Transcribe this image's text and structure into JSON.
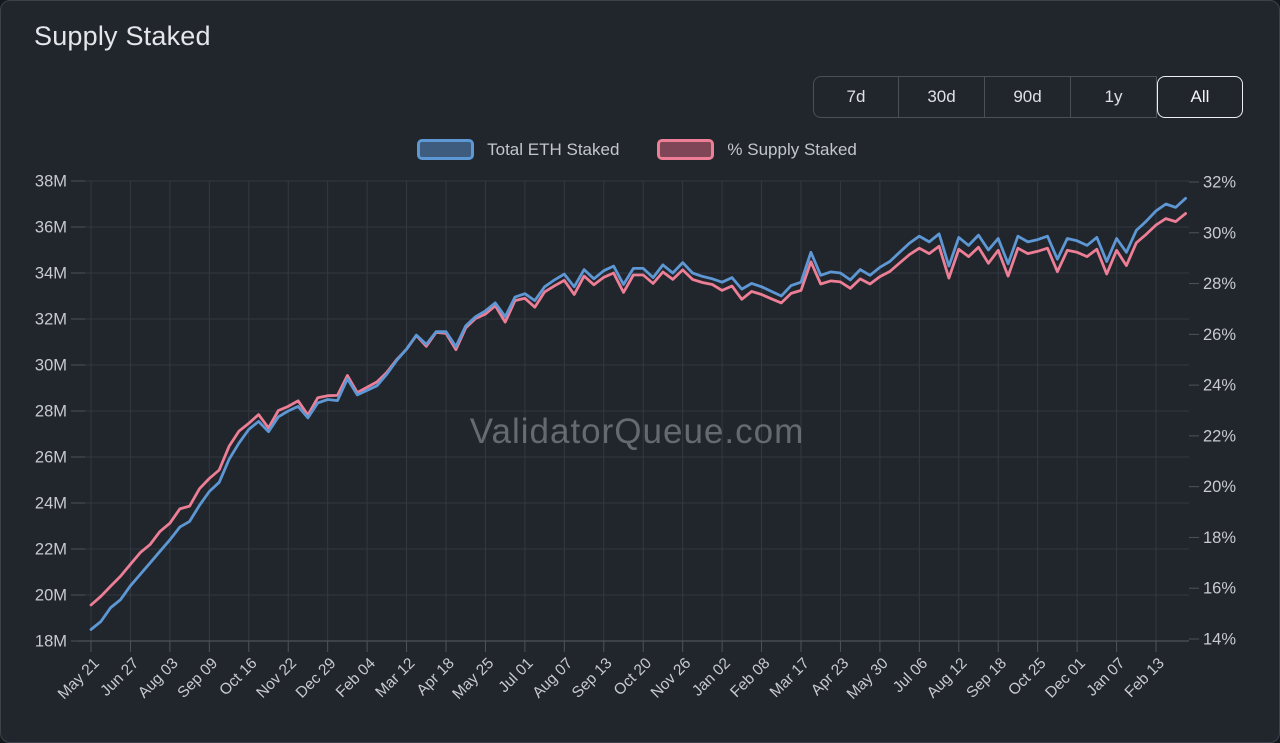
{
  "card": {
    "title": "Supply Staked"
  },
  "toolbar": {
    "ranges": [
      {
        "label": "7d",
        "active": false
      },
      {
        "label": "30d",
        "active": false
      },
      {
        "label": "90d",
        "active": false
      },
      {
        "label": "1y",
        "active": false
      },
      {
        "label": "All",
        "active": true
      }
    ]
  },
  "legend": {
    "items": [
      {
        "label": "Total ETH Staked",
        "color": "#5d97d4",
        "fill": "#3e5c7d"
      },
      {
        "label": "% Supply Staked",
        "color": "#ec7e95",
        "fill": "#7e4656"
      }
    ]
  },
  "watermark": "ValidatorQueue.com",
  "colors": {
    "background": "#21252c",
    "card_border": "#3c424b",
    "grid": "#333942",
    "axis": "#4d535c",
    "tick_text": "#c7cad0",
    "title_text": "#e4e6e9",
    "watermark_text": "rgba(158,163,171,0.55)",
    "blue": "#5d97d4",
    "pink": "#ec7e95"
  },
  "chart_data": {
    "type": "line",
    "title": "Supply Staked",
    "grid": true,
    "legend_position": "top",
    "x_tick_labels": [
      "May 21",
      "Jun 27",
      "Aug 03",
      "Sep 09",
      "Oct 16",
      "Nov 22",
      "Dec 29",
      "Feb 04",
      "Mar 12",
      "Apr 18",
      "May 25",
      "Jul 01",
      "Aug 07",
      "Sep 13",
      "Oct 20",
      "Nov 26",
      "Jan 02",
      "Feb 08",
      "Mar 17",
      "Apr 23",
      "May 30",
      "Jul 06",
      "Aug 12",
      "Sep 18",
      "Oct 25",
      "Dec 01",
      "Jan 07",
      "Feb 13"
    ],
    "y_left": {
      "name": "Total ETH Staked",
      "ticks": [
        "38M",
        "36M",
        "34M",
        "32M",
        "30M",
        "28M",
        "26M",
        "24M",
        "22M",
        "20M",
        "18M"
      ],
      "range": [
        18000000,
        38000000
      ]
    },
    "y_right": {
      "name": "% Supply Staked",
      "ticks": [
        "32%",
        "30%",
        "28%",
        "26%",
        "24%",
        "22%",
        "20%",
        "18%",
        "16%",
        "14%"
      ],
      "range": [
        14,
        32
      ]
    },
    "points_per_tick_interval": 4,
    "series": [
      {
        "name": "Total ETH Staked",
        "axis": "left",
        "unit": "M ETH",
        "color": "#5d97d4",
        "values": [
          18.5,
          18.85,
          19.45,
          19.8,
          20.4,
          20.9,
          21.4,
          21.9,
          22.4,
          22.95,
          23.2,
          23.9,
          24.5,
          24.9,
          25.9,
          26.6,
          27.2,
          27.55,
          27.1,
          27.75,
          28.0,
          28.2,
          27.7,
          28.35,
          28.5,
          28.45,
          29.4,
          28.7,
          28.9,
          29.1,
          29.6,
          30.2,
          30.7,
          31.3,
          30.9,
          31.45,
          31.45,
          30.8,
          31.7,
          32.1,
          32.35,
          32.7,
          32.1,
          32.95,
          33.1,
          32.8,
          33.4,
          33.7,
          33.95,
          33.4,
          34.15,
          33.75,
          34.1,
          34.3,
          33.5,
          34.2,
          34.2,
          33.8,
          34.35,
          34.0,
          34.45,
          34.0,
          33.85,
          33.75,
          33.6,
          33.8,
          33.3,
          33.55,
          33.4,
          33.2,
          33.0,
          33.45,
          33.6,
          34.9,
          33.9,
          34.05,
          34.0,
          33.7,
          34.15,
          33.9,
          34.25,
          34.5,
          34.9,
          35.3,
          35.6,
          35.35,
          35.7,
          34.3,
          35.55,
          35.2,
          35.65,
          35.0,
          35.5,
          34.4,
          35.6,
          35.35,
          35.45,
          35.6,
          34.6,
          35.5,
          35.4,
          35.2,
          35.55,
          34.5,
          35.5,
          34.9,
          35.85,
          36.25,
          36.7,
          37.0,
          36.85,
          37.25
        ]
      },
      {
        "name": "% Supply Staked",
        "axis": "right",
        "unit": "%",
        "color": "#ec7e95",
        "values": [
          15.41,
          15.75,
          16.15,
          16.54,
          17.0,
          17.46,
          17.78,
          18.29,
          18.61,
          19.17,
          19.28,
          19.96,
          20.36,
          20.69,
          21.62,
          22.21,
          22.52,
          22.86,
          22.34,
          23.02,
          23.18,
          23.4,
          22.84,
          23.52,
          23.6,
          23.61,
          24.39,
          23.72,
          23.93,
          24.14,
          24.51,
          25.01,
          25.42,
          25.96,
          25.53,
          26.08,
          26.04,
          25.4,
          26.25,
          26.62,
          26.79,
          27.12,
          26.48,
          27.32,
          27.41,
          27.06,
          27.66,
          27.9,
          28.11,
          27.56,
          28.28,
          27.94,
          28.23,
          28.4,
          27.64,
          28.32,
          28.32,
          27.99,
          28.44,
          28.15,
          28.52,
          28.15,
          28.03,
          27.95,
          27.72,
          27.89,
          27.37,
          27.68,
          27.56,
          27.39,
          27.23,
          27.6,
          27.72,
          28.84,
          27.97,
          28.09,
          28.05,
          27.8,
          28.17,
          27.97,
          28.26,
          28.46,
          28.79,
          29.12,
          29.37,
          29.16,
          29.45,
          28.2,
          29.33,
          29.04,
          29.41,
          28.78,
          29.29,
          28.28,
          29.37,
          29.16,
          29.25,
          29.37,
          28.45,
          29.29,
          29.21,
          29.04,
          29.33,
          28.36,
          29.29,
          28.69,
          29.58,
          29.91,
          30.28,
          30.53,
          30.41,
          30.73
        ]
      }
    ]
  }
}
